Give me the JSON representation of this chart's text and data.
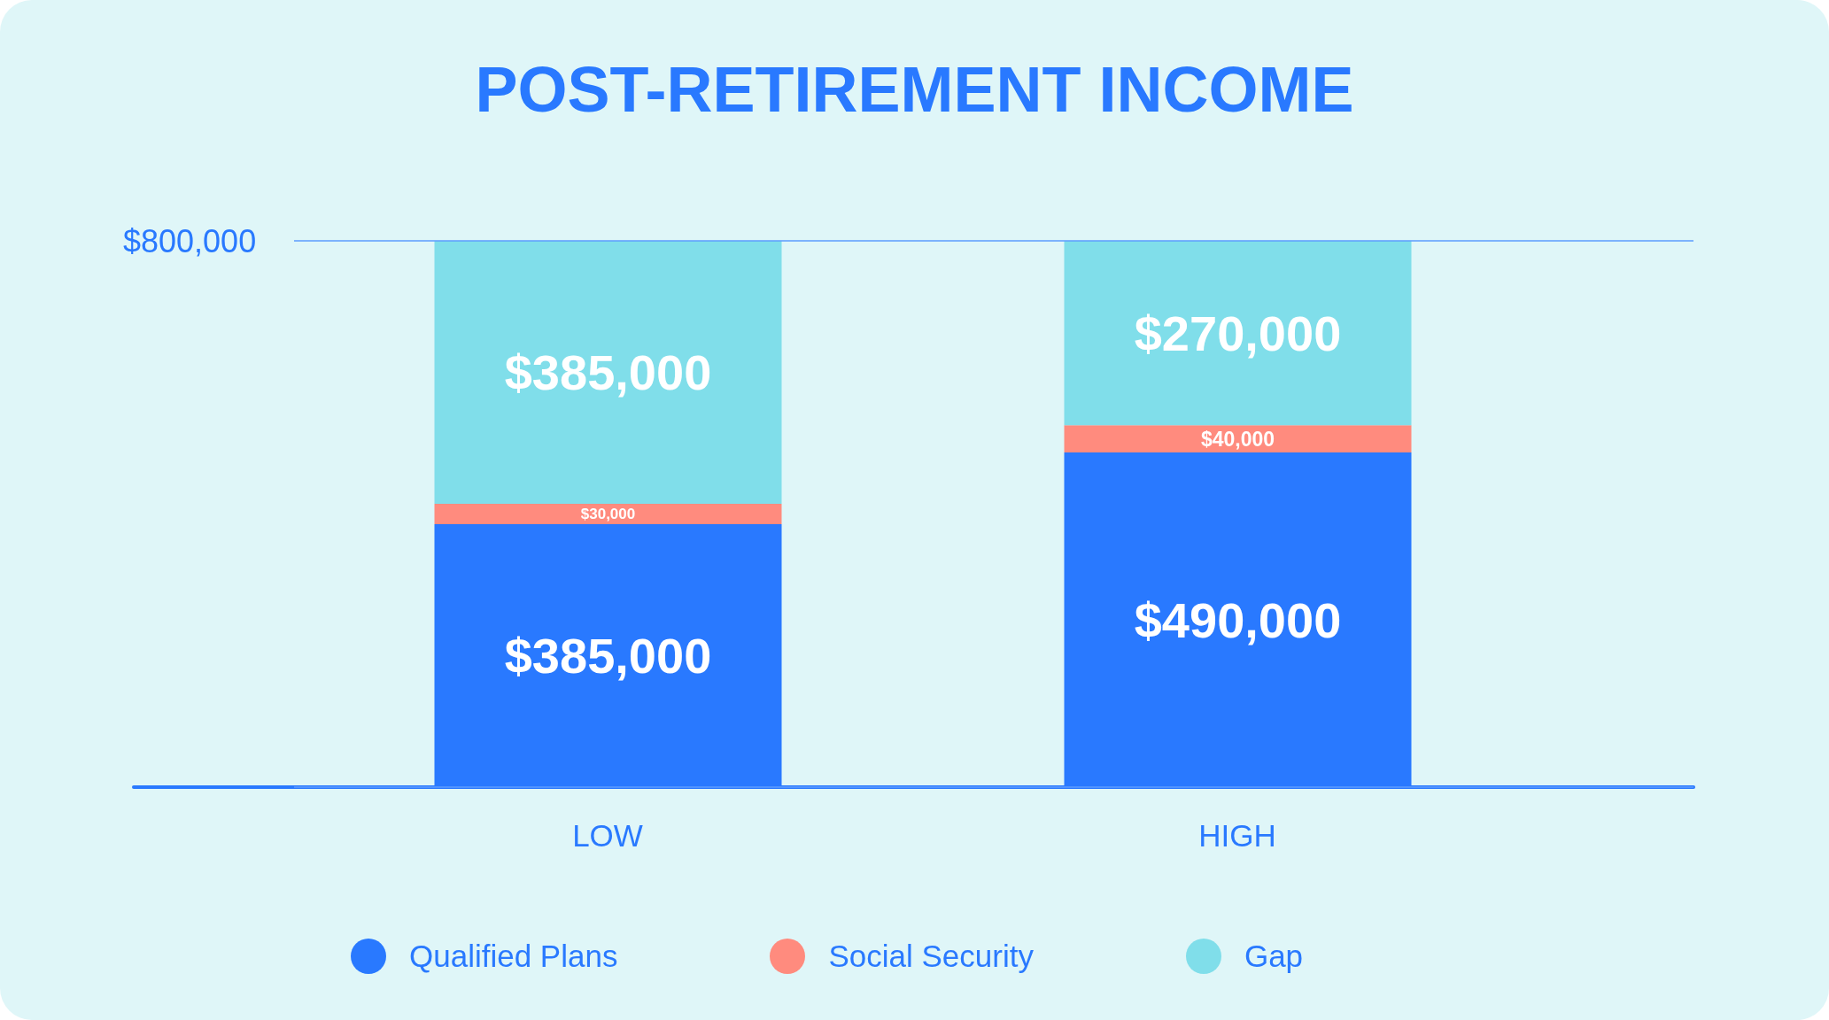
{
  "chart_data": {
    "type": "bar",
    "title": "POST-RETIREMENT INCOME",
    "categories": [
      "LOW",
      "HIGH"
    ],
    "stacked": true,
    "series": [
      {
        "name": "Qualified Plans",
        "color": "#2979ff",
        "values": [
          385000,
          490000
        ],
        "value_labels": [
          "$385,000",
          "$490,000"
        ]
      },
      {
        "name": "Social Security",
        "color": "#ff8b7e",
        "values": [
          30000,
          40000
        ],
        "value_labels": [
          "$30,000",
          "$40,000"
        ]
      },
      {
        "name": "Gap",
        "color": "#80deea",
        "values": [
          385000,
          270000
        ],
        "value_labels": [
          "$385,000",
          "$270,000"
        ]
      }
    ],
    "ylim": [
      0,
      800000
    ],
    "yticks": [
      {
        "value": 800000,
        "label": "$800,000"
      }
    ],
    "grid": "y",
    "legend": "bottom"
  }
}
